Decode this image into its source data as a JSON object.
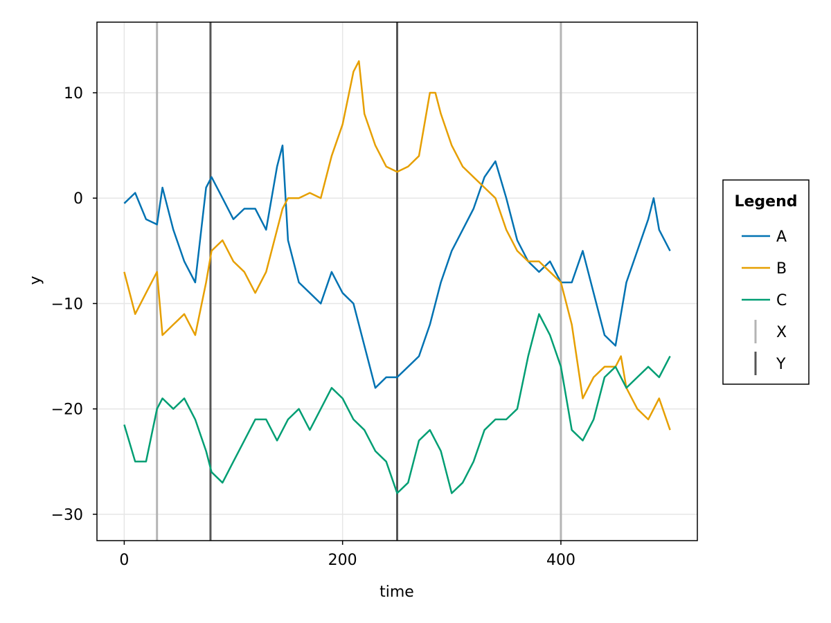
{
  "chart_data": {
    "type": "line",
    "title": "",
    "xlabel": "time",
    "ylabel": "y",
    "xlim": [
      -25,
      525
    ],
    "ylim": [
      -32.5,
      16.7
    ],
    "x_ticks": [
      0,
      200,
      400
    ],
    "y_ticks": [
      10,
      0,
      -10,
      -20,
      -30
    ],
    "y_tick_labels": [
      "10",
      "0",
      "−10",
      "−20",
      "−30"
    ],
    "grid": true,
    "legend": {
      "title": "Legend",
      "position": "right"
    },
    "series": [
      {
        "name": "A",
        "color": "#0072b2",
        "points": [
          [
            0,
            -0.5
          ],
          [
            10,
            0.5
          ],
          [
            20,
            -2
          ],
          [
            30,
            -2.5
          ],
          [
            35,
            1
          ],
          [
            45,
            -3
          ],
          [
            55,
            -6
          ],
          [
            65,
            -8
          ],
          [
            75,
            1
          ],
          [
            80,
            2
          ],
          [
            90,
            0
          ],
          [
            100,
            -2
          ],
          [
            110,
            -1
          ],
          [
            120,
            -1
          ],
          [
            130,
            -3
          ],
          [
            140,
            3
          ],
          [
            145,
            5
          ],
          [
            150,
            -4
          ],
          [
            160,
            -8
          ],
          [
            170,
            -9
          ],
          [
            180,
            -10
          ],
          [
            190,
            -7
          ],
          [
            200,
            -9
          ],
          [
            210,
            -10
          ],
          [
            220,
            -14
          ],
          [
            230,
            -18
          ],
          [
            240,
            -17
          ],
          [
            250,
            -17
          ],
          [
            260,
            -16
          ],
          [
            270,
            -15
          ],
          [
            280,
            -12
          ],
          [
            290,
            -8
          ],
          [
            300,
            -5
          ],
          [
            310,
            -3
          ],
          [
            320,
            -1
          ],
          [
            330,
            2
          ],
          [
            340,
            3.5
          ],
          [
            350,
            0
          ],
          [
            360,
            -4
          ],
          [
            370,
            -6
          ],
          [
            380,
            -7
          ],
          [
            390,
            -6
          ],
          [
            400,
            -8
          ],
          [
            410,
            -8
          ],
          [
            420,
            -5
          ],
          [
            430,
            -9
          ],
          [
            440,
            -13
          ],
          [
            450,
            -14
          ],
          [
            455,
            -11
          ],
          [
            460,
            -8
          ],
          [
            470,
            -5
          ],
          [
            480,
            -2
          ],
          [
            485,
            0
          ],
          [
            490,
            -3
          ],
          [
            500,
            -5
          ]
        ]
      },
      {
        "name": "B",
        "color": "#e69f00",
        "points": [
          [
            0,
            -7
          ],
          [
            10,
            -11
          ],
          [
            20,
            -9
          ],
          [
            30,
            -7
          ],
          [
            35,
            -13
          ],
          [
            45,
            -12
          ],
          [
            55,
            -11
          ],
          [
            65,
            -13
          ],
          [
            75,
            -8
          ],
          [
            80,
            -5
          ],
          [
            90,
            -4
          ],
          [
            100,
            -6
          ],
          [
            110,
            -7
          ],
          [
            120,
            -9
          ],
          [
            130,
            -7
          ],
          [
            140,
            -3
          ],
          [
            145,
            -1
          ],
          [
            150,
            0
          ],
          [
            160,
            0
          ],
          [
            170,
            0.5
          ],
          [
            180,
            0
          ],
          [
            190,
            4
          ],
          [
            200,
            7
          ],
          [
            210,
            12
          ],
          [
            215,
            13
          ],
          [
            220,
            8
          ],
          [
            230,
            5
          ],
          [
            240,
            3
          ],
          [
            250,
            2.5
          ],
          [
            260,
            3
          ],
          [
            270,
            4
          ],
          [
            280,
            10
          ],
          [
            285,
            10
          ],
          [
            290,
            8
          ],
          [
            300,
            5
          ],
          [
            310,
            3
          ],
          [
            320,
            2
          ],
          [
            330,
            1
          ],
          [
            340,
            0
          ],
          [
            350,
            -3
          ],
          [
            360,
            -5
          ],
          [
            370,
            -6
          ],
          [
            380,
            -6
          ],
          [
            390,
            -7
          ],
          [
            400,
            -8
          ],
          [
            410,
            -12
          ],
          [
            420,
            -19
          ],
          [
            430,
            -17
          ],
          [
            440,
            -16
          ],
          [
            450,
            -16
          ],
          [
            455,
            -15
          ],
          [
            460,
            -18
          ],
          [
            470,
            -20
          ],
          [
            480,
            -21
          ],
          [
            490,
            -19
          ],
          [
            500,
            -22
          ]
        ]
      },
      {
        "name": "C",
        "color": "#009e73",
        "points": [
          [
            0,
            -21.5
          ],
          [
            10,
            -25
          ],
          [
            20,
            -25
          ],
          [
            30,
            -20
          ],
          [
            35,
            -19
          ],
          [
            45,
            -20
          ],
          [
            55,
            -19
          ],
          [
            65,
            -21
          ],
          [
            75,
            -24
          ],
          [
            80,
            -26
          ],
          [
            90,
            -27
          ],
          [
            100,
            -25
          ],
          [
            110,
            -23
          ],
          [
            120,
            -21
          ],
          [
            130,
            -21
          ],
          [
            140,
            -23
          ],
          [
            145,
            -22
          ],
          [
            150,
            -21
          ],
          [
            160,
            -20
          ],
          [
            170,
            -22
          ],
          [
            180,
            -20
          ],
          [
            190,
            -18
          ],
          [
            200,
            -19
          ],
          [
            210,
            -21
          ],
          [
            220,
            -22
          ],
          [
            230,
            -24
          ],
          [
            240,
            -25
          ],
          [
            250,
            -28
          ],
          [
            260,
            -27
          ],
          [
            270,
            -23
          ],
          [
            280,
            -22
          ],
          [
            290,
            -24
          ],
          [
            300,
            -28
          ],
          [
            310,
            -27
          ],
          [
            320,
            -25
          ],
          [
            330,
            -22
          ],
          [
            340,
            -21
          ],
          [
            350,
            -21
          ],
          [
            360,
            -20
          ],
          [
            370,
            -15
          ],
          [
            380,
            -11
          ],
          [
            390,
            -13
          ],
          [
            400,
            -16
          ],
          [
            410,
            -22
          ],
          [
            420,
            -23
          ],
          [
            430,
            -21
          ],
          [
            440,
            -17
          ],
          [
            450,
            -16
          ],
          [
            460,
            -18
          ],
          [
            470,
            -17
          ],
          [
            480,
            -16
          ],
          [
            490,
            -17
          ],
          [
            500,
            -15
          ]
        ]
      },
      {
        "name": "X",
        "color": "#b4b4b4",
        "type": "vline",
        "x": [
          30,
          400
        ]
      },
      {
        "name": "Y",
        "color": "#555555",
        "type": "vline",
        "x": [
          79,
          250
        ]
      }
    ]
  }
}
